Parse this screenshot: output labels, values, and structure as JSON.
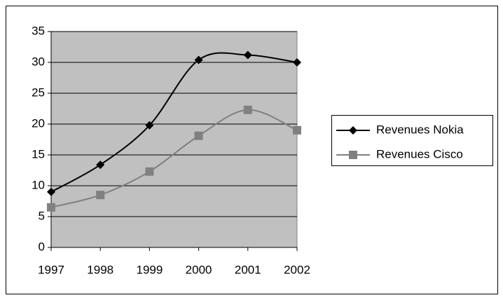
{
  "chart_data": {
    "type": "line",
    "x": [
      1997,
      1998,
      1999,
      2000,
      2001,
      2002
    ],
    "xlim": [
      1997,
      2002
    ],
    "xticks": [
      1997,
      1998,
      1999,
      2000,
      2001,
      2002
    ],
    "ylim": [
      0,
      35
    ],
    "yticks": [
      0,
      5,
      10,
      15,
      20,
      25,
      30,
      35
    ],
    "grid": true,
    "smooth": true,
    "legend": "right",
    "series": [
      {
        "name": "Revenues Nokia",
        "color": "#000000",
        "marker": "diamond",
        "values": [
          9.0,
          13.4,
          19.8,
          30.4,
          31.2,
          30.0
        ]
      },
      {
        "name": "Revenues Cisco",
        "color": "#808080",
        "marker": "square",
        "values": [
          6.5,
          8.5,
          12.3,
          18.1,
          22.3,
          19.0
        ]
      }
    ]
  }
}
